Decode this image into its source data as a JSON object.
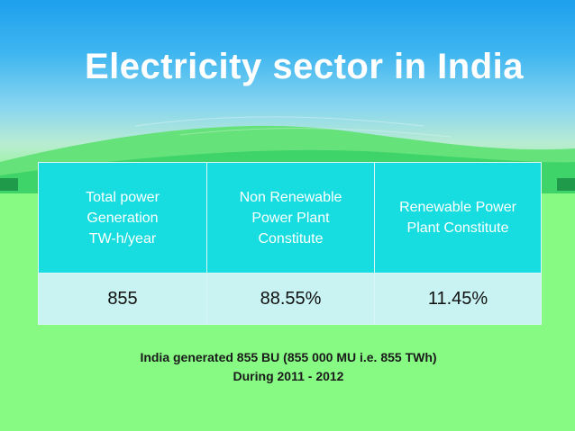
{
  "slide": {
    "title": "Electricity sector in India",
    "table": {
      "headers": [
        [
          "Total power",
          "Generation",
          "TW-h/year"
        ],
        [
          "Non Renewable",
          "Power Plant",
          "Constitute"
        ],
        [
          "Renewable Power",
          "Plant Constitute"
        ]
      ],
      "values": [
        "855",
        "88.55%",
        "11.45%"
      ]
    },
    "note": {
      "line1": "India generated 855 BU (855 000 MU i.e. 855 TWh)",
      "line2": "During 2011 - 2012"
    }
  },
  "colors": {
    "background": "#86fa83",
    "sky": "#1ea0ee",
    "header_cell": "#17dde0",
    "value_cell": "#c8f3f2"
  }
}
